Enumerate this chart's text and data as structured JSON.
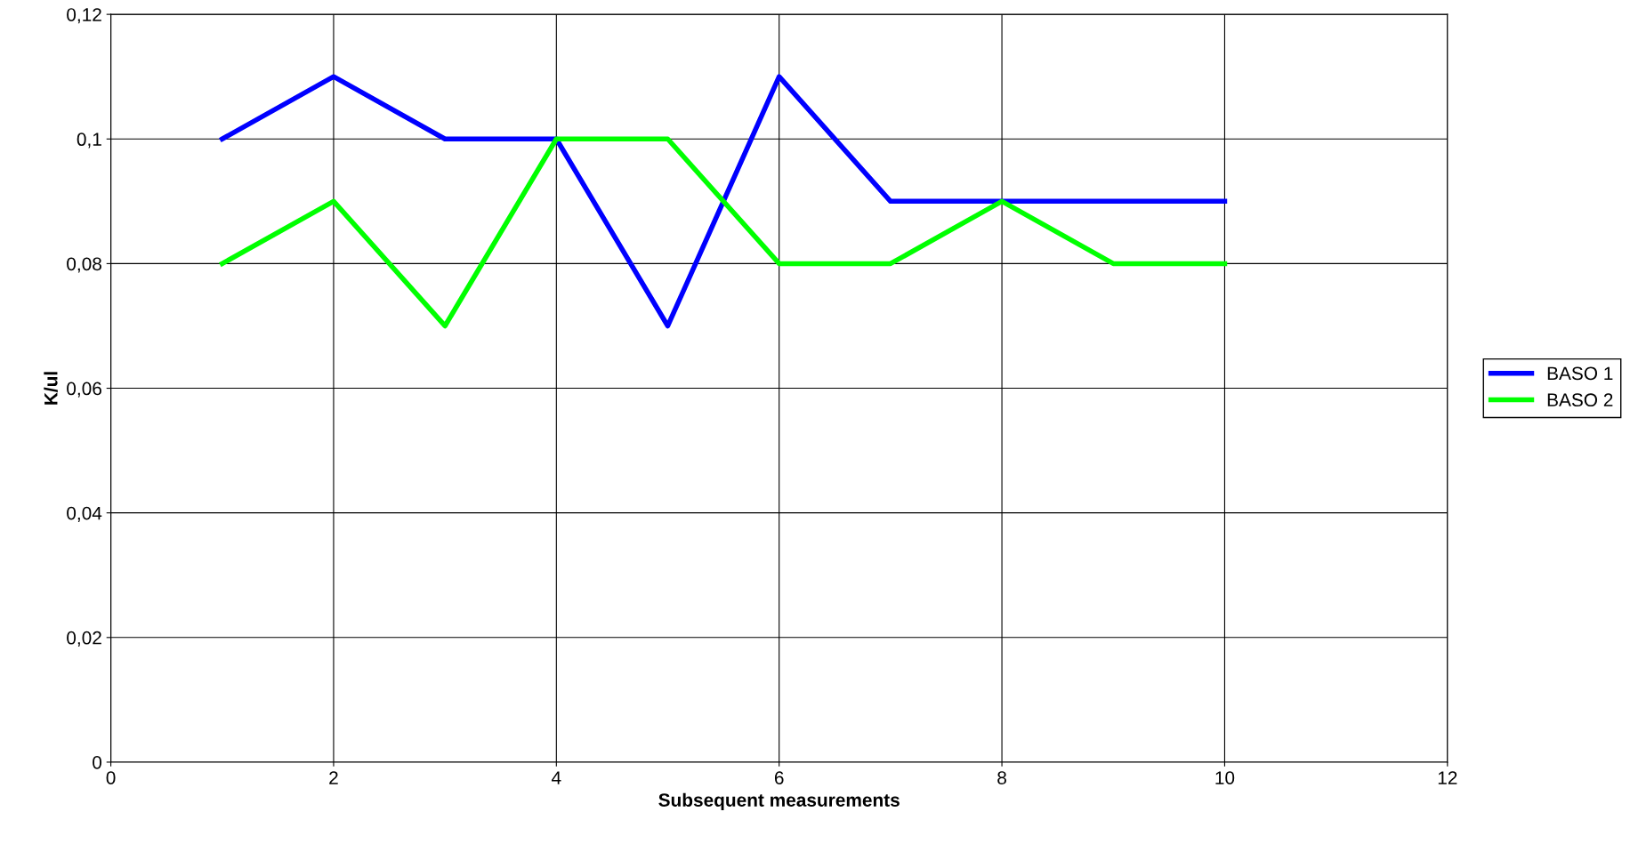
{
  "chart_data": {
    "type": "line",
    "xlabel": "Subsequent measurements",
    "ylabel": "K/ul",
    "x": [
      1,
      2,
      3,
      4,
      5,
      6,
      7,
      8,
      9,
      10
    ],
    "series": [
      {
        "name": "BASO 1",
        "color": "#0000ff",
        "values": [
          0.1,
          0.11,
          0.1,
          0.1,
          0.07,
          0.11,
          0.09,
          0.09,
          0.09,
          0.09
        ]
      },
      {
        "name": "BASO 2",
        "color": "#00ff00",
        "values": [
          0.08,
          0.09,
          0.07,
          0.1,
          0.1,
          0.08,
          0.08,
          0.09,
          0.08,
          0.08
        ]
      }
    ],
    "xlim": [
      0,
      12
    ],
    "xticks": [
      0,
      2,
      4,
      6,
      8,
      10,
      12
    ],
    "ylim": [
      0,
      0.12
    ],
    "yticks": [
      0,
      {
        "value": 0.02,
        "label": "0,02"
      },
      {
        "value": 0.04,
        "label": "0,04"
      },
      {
        "value": 0.06,
        "label": "0,06"
      },
      {
        "value": 0.08,
        "label": "0,08"
      },
      {
        "value": 0.1,
        "label": "0,1"
      },
      {
        "value": 0.12,
        "label": "0,12"
      }
    ],
    "grid": true,
    "legend": "right",
    "marker": "none",
    "line_style": "solid"
  }
}
